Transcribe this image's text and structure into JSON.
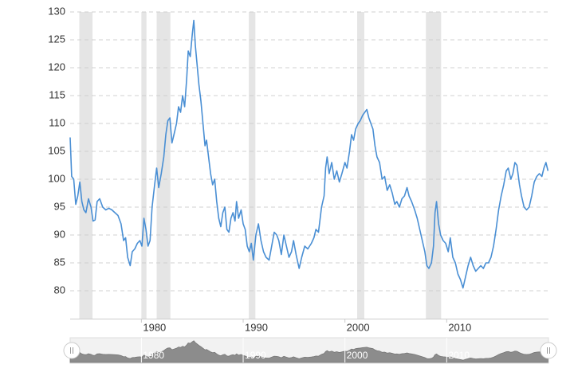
{
  "chart_data": {
    "type": "line",
    "color": "#4a8fd4",
    "grid": true,
    "xlim": [
      1973,
      2020
    ],
    "xticks": [
      1980,
      1990,
      2000,
      2010
    ],
    "ylim": [
      75,
      130
    ],
    "yticks": [
      80,
      85,
      90,
      95,
      100,
      105,
      110,
      115,
      120,
      125,
      130
    ],
    "recession_color": "#e5e5e5",
    "recessions": [
      [
        1973.9,
        1975.2
      ],
      [
        1980.0,
        1980.5
      ],
      [
        1981.5,
        1982.85
      ],
      [
        1990.55,
        1991.2
      ],
      [
        2001.2,
        2001.9
      ],
      [
        2007.95,
        2009.45
      ]
    ],
    "series": [
      {
        "color": "#4a8fd4",
        "x": [
          1973.0,
          1973.15,
          1973.35,
          1973.55,
          1973.75,
          1973.95,
          1974.15,
          1974.35,
          1974.55,
          1974.8,
          1975.05,
          1975.25,
          1975.45,
          1975.65,
          1975.9,
          1976.2,
          1976.5,
          1976.8,
          1977.1,
          1977.4,
          1977.7,
          1978.0,
          1978.25,
          1978.45,
          1978.65,
          1978.9,
          1979.1,
          1979.35,
          1979.6,
          1979.85,
          1980.05,
          1980.25,
          1980.45,
          1980.65,
          1980.85,
          1981.05,
          1981.3,
          1981.5,
          1981.7,
          1981.95,
          1982.2,
          1982.4,
          1982.6,
          1982.8,
          1983.0,
          1983.2,
          1983.45,
          1983.65,
          1983.85,
          1984.05,
          1984.25,
          1984.45,
          1984.6,
          1984.8,
          1985.0,
          1985.15,
          1985.3,
          1985.45,
          1985.65,
          1985.85,
          1986.05,
          1986.25,
          1986.4,
          1986.6,
          1986.8,
          1987.0,
          1987.2,
          1987.4,
          1987.6,
          1987.8,
          1988.0,
          1988.2,
          1988.4,
          1988.6,
          1988.8,
          1989.0,
          1989.2,
          1989.35,
          1989.55,
          1989.8,
          1990.0,
          1990.2,
          1990.4,
          1990.6,
          1990.8,
          1991.0,
          1991.25,
          1991.5,
          1991.75,
          1992.0,
          1992.25,
          1992.55,
          1992.8,
          1993.05,
          1993.3,
          1993.5,
          1993.75,
          1994.0,
          1994.25,
          1994.5,
          1994.75,
          1994.95,
          1995.2,
          1995.5,
          1995.75,
          1996.05,
          1996.35,
          1996.7,
          1996.95,
          1997.15,
          1997.4,
          1997.7,
          1997.95,
          1998.1,
          1998.25,
          1998.45,
          1998.7,
          1998.95,
          1999.2,
          1999.45,
          1999.7,
          2000.0,
          2000.2,
          2000.45,
          2000.65,
          2000.85,
          2001.05,
          2001.3,
          2001.5,
          2001.75,
          2001.95,
          2002.15,
          2002.35,
          2002.55,
          2002.75,
          2002.95,
          2003.15,
          2003.4,
          2003.65,
          2003.9,
          2004.15,
          2004.4,
          2004.65,
          2004.9,
          2005.1,
          2005.35,
          2005.6,
          2005.85,
          2006.1,
          2006.3,
          2006.55,
          2006.85,
          2007.1,
          2007.35,
          2007.6,
          2007.85,
          2008.05,
          2008.25,
          2008.5,
          2008.7,
          2008.85,
          2009.0,
          2009.2,
          2009.4,
          2009.65,
          2009.9,
          2010.15,
          2010.35,
          2010.6,
          2010.85,
          2011.1,
          2011.35,
          2011.6,
          2011.85,
          2012.1,
          2012.35,
          2012.6,
          2012.85,
          2013.1,
          2013.35,
          2013.6,
          2013.85,
          2014.1,
          2014.35,
          2014.6,
          2014.85,
          2015.1,
          2015.35,
          2015.6,
          2015.85,
          2016.05,
          2016.3,
          2016.5,
          2016.7,
          2016.9,
          2017.15,
          2017.35,
          2017.6,
          2017.85,
          2018.1,
          2018.35,
          2018.6,
          2018.85,
          2019.1,
          2019.35,
          2019.55,
          2019.75,
          2019.95
        ],
        "values": [
          107.5,
          100.5,
          100,
          95.5,
          97,
          99.5,
          96,
          94.5,
          94,
          96.5,
          95,
          92.5,
          92.7,
          96,
          96.5,
          95,
          94.5,
          94.8,
          94.5,
          94,
          93.5,
          92,
          89,
          89.5,
          86,
          84.5,
          87,
          87.5,
          88.5,
          89,
          88,
          93,
          91,
          88,
          89,
          95,
          99,
          102,
          98.5,
          101,
          104,
          108,
          110.5,
          111,
          106.5,
          108,
          110,
          113,
          112,
          115,
          113,
          118,
          123,
          122,
          126,
          128.5,
          124,
          121,
          117,
          114,
          110,
          106,
          107,
          104,
          101,
          99,
          100,
          96,
          93,
          91.5,
          94,
          95,
          91,
          90.5,
          93,
          94,
          92.5,
          96,
          93,
          94.5,
          92,
          91,
          88,
          87,
          88.5,
          85.5,
          90,
          92,
          89,
          87,
          86,
          85.5,
          88,
          90.5,
          90,
          89,
          86.5,
          90,
          88,
          86,
          87,
          89,
          86.5,
          84,
          86,
          88,
          87.5,
          88.5,
          89.5,
          91,
          90.5,
          95,
          97,
          102,
          104,
          101,
          103,
          100,
          101.5,
          99.5,
          101,
          103,
          102,
          105,
          108,
          107,
          109,
          110,
          110.5,
          111.5,
          112,
          112.5,
          111,
          110,
          109,
          106,
          104,
          103,
          100,
          100.5,
          98,
          99,
          97.5,
          95.5,
          96,
          95,
          96.5,
          97,
          98.5,
          97,
          96,
          94.5,
          93,
          91,
          89,
          87,
          84.5,
          84,
          85,
          88,
          94,
          96,
          92,
          90,
          89,
          88.5,
          87,
          89.5,
          86,
          85,
          83,
          82,
          80.5,
          82.5,
          84.5,
          86,
          84.5,
          83.5,
          84,
          84.5,
          84,
          85,
          85,
          86,
          88,
          91,
          94.5,
          97,
          99,
          101.5,
          102,
          100,
          101,
          103,
          102.5,
          99,
          97,
          95,
          94.5,
          95,
          97,
          99.5,
          100.5,
          101,
          100.5,
          102,
          103,
          101.5
        ]
      }
    ]
  }
}
